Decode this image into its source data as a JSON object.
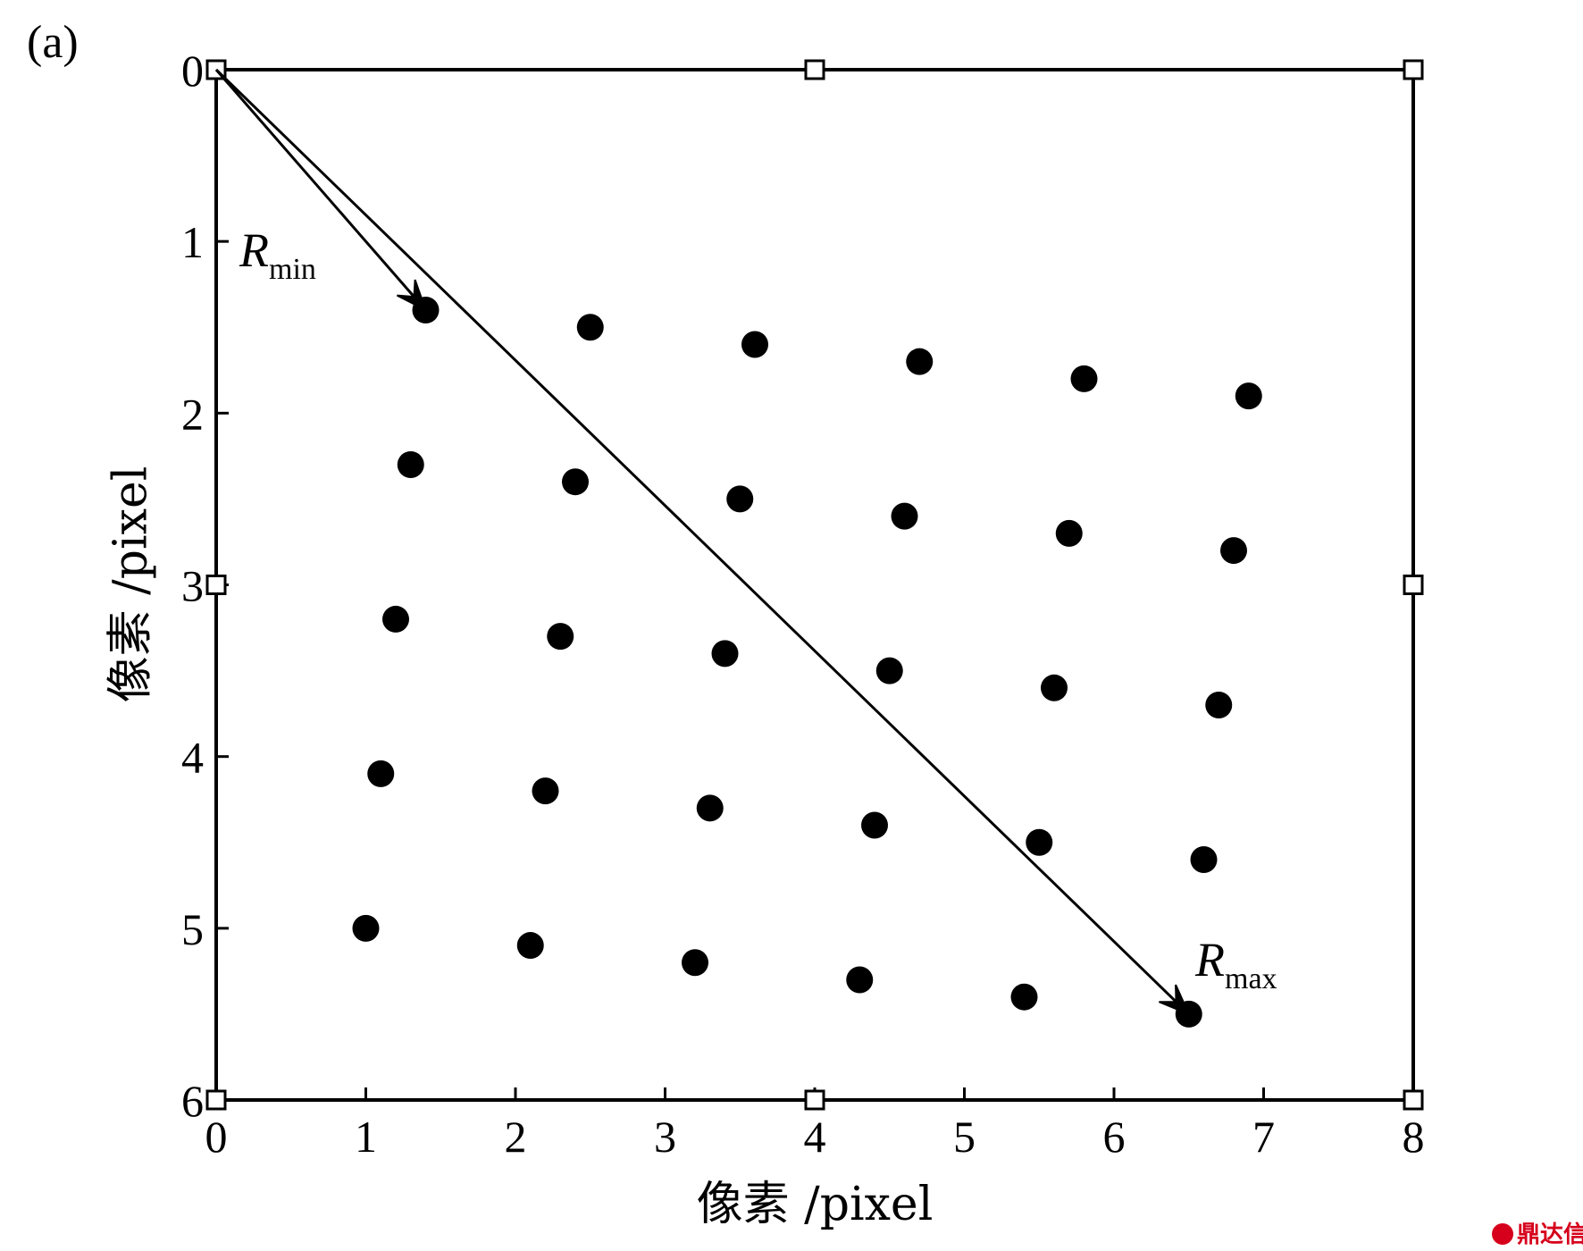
{
  "panel_label": "(a)",
  "watermark": "鼎达信",
  "chart_data": {
    "type": "scatter",
    "xlabel": "像素 /pixel",
    "ylabel": "像素 /pixel",
    "xlim": [
      0,
      8
    ],
    "ylim": [
      0,
      6
    ],
    "y_inverted": true,
    "x_ticks": [
      "0",
      "1",
      "2",
      "3",
      "4",
      "5",
      "6",
      "7",
      "8"
    ],
    "y_ticks": [
      "0",
      "1",
      "2",
      "3",
      "4",
      "5",
      "6"
    ],
    "grid": false,
    "points": [
      {
        "x": 1.4,
        "y": 1.4
      },
      {
        "x": 2.5,
        "y": 1.5
      },
      {
        "x": 3.6,
        "y": 1.6
      },
      {
        "x": 4.7,
        "y": 1.7
      },
      {
        "x": 5.8,
        "y": 1.8
      },
      {
        "x": 6.9,
        "y": 1.9
      },
      {
        "x": 1.3,
        "y": 2.3
      },
      {
        "x": 2.4,
        "y": 2.4
      },
      {
        "x": 3.5,
        "y": 2.5
      },
      {
        "x": 4.6,
        "y": 2.6
      },
      {
        "x": 5.7,
        "y": 2.7
      },
      {
        "x": 6.8,
        "y": 2.8
      },
      {
        "x": 1.2,
        "y": 3.2
      },
      {
        "x": 2.3,
        "y": 3.3
      },
      {
        "x": 3.4,
        "y": 3.4
      },
      {
        "x": 4.5,
        "y": 3.5
      },
      {
        "x": 5.6,
        "y": 3.6
      },
      {
        "x": 6.7,
        "y": 3.7
      },
      {
        "x": 1.1,
        "y": 4.1
      },
      {
        "x": 2.2,
        "y": 4.2
      },
      {
        "x": 3.3,
        "y": 4.3
      },
      {
        "x": 4.4,
        "y": 4.4
      },
      {
        "x": 5.5,
        "y": 4.5
      },
      {
        "x": 6.6,
        "y": 4.6
      },
      {
        "x": 1.0,
        "y": 5.0
      },
      {
        "x": 2.1,
        "y": 5.1
      },
      {
        "x": 3.2,
        "y": 5.2
      },
      {
        "x": 4.3,
        "y": 5.3
      },
      {
        "x": 5.4,
        "y": 5.4
      },
      {
        "x": 6.5,
        "y": 5.5
      }
    ],
    "square_markers": [
      {
        "x": 0,
        "y": 0
      },
      {
        "x": 4,
        "y": 0
      },
      {
        "x": 8,
        "y": 0
      },
      {
        "x": 0,
        "y": 3
      },
      {
        "x": 8,
        "y": 3
      },
      {
        "x": 0,
        "y": 6
      },
      {
        "x": 4,
        "y": 6
      },
      {
        "x": 8,
        "y": 6
      }
    ],
    "annotations": [
      {
        "name": "r-min",
        "label": "R",
        "subscript": "min",
        "from": {
          "x": 0,
          "y": 0
        },
        "to": {
          "x": 1.4,
          "y": 1.4
        }
      },
      {
        "name": "r-max",
        "label": "R",
        "subscript": "max",
        "from": {
          "x": 0,
          "y": 0
        },
        "to": {
          "x": 6.5,
          "y": 5.5
        }
      }
    ]
  }
}
